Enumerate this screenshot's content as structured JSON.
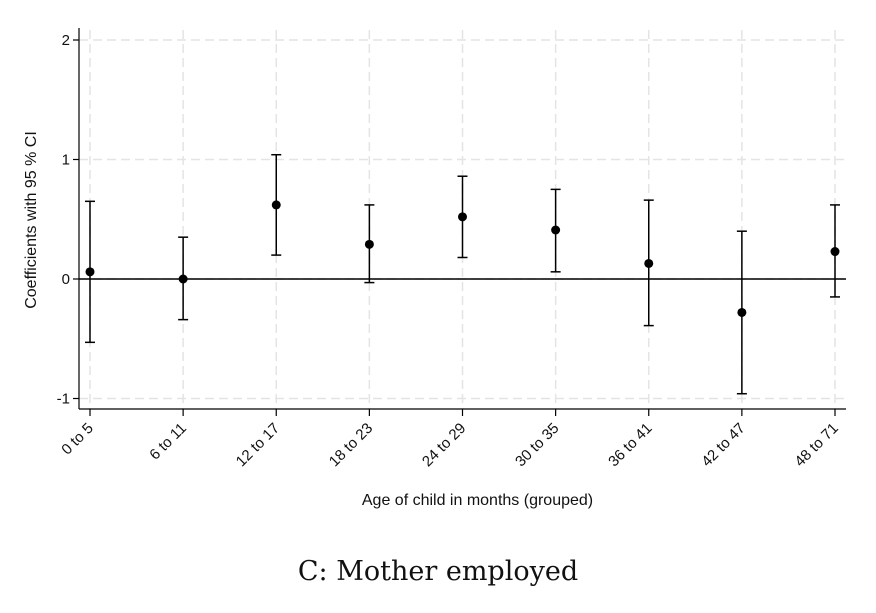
{
  "caption": "C: Mother employed",
  "chart_data": {
    "type": "scatter",
    "subtype": "coefficient-plot-with-error-bars",
    "xlabel": "Age of child in months (grouped)",
    "ylabel": "Coefficients with 95 % CI",
    "categories": [
      "0 to 5",
      "6 to 11",
      "12 to 17",
      "18 to 23",
      "24 to 29",
      "30 to 35",
      "36 to 41",
      "42 to 47",
      "48 to 71"
    ],
    "estimates": [
      0.06,
      0.0,
      0.62,
      0.29,
      0.52,
      0.41,
      0.13,
      -0.28,
      0.23
    ],
    "ci_lower": [
      -0.53,
      -0.34,
      0.2,
      -0.03,
      0.18,
      0.06,
      -0.39,
      -0.96,
      -0.15
    ],
    "ci_upper": [
      0.65,
      0.35,
      1.04,
      0.62,
      0.86,
      0.75,
      0.66,
      0.4,
      0.62
    ],
    "yticks": [
      2,
      1,
      0,
      -1
    ],
    "ylim": [
      -1.1,
      2.1
    ],
    "reference_line": 0,
    "grid": true,
    "colors": {
      "marker": "#000000",
      "grid": "#e4e4e4",
      "axis": "#000000"
    }
  }
}
